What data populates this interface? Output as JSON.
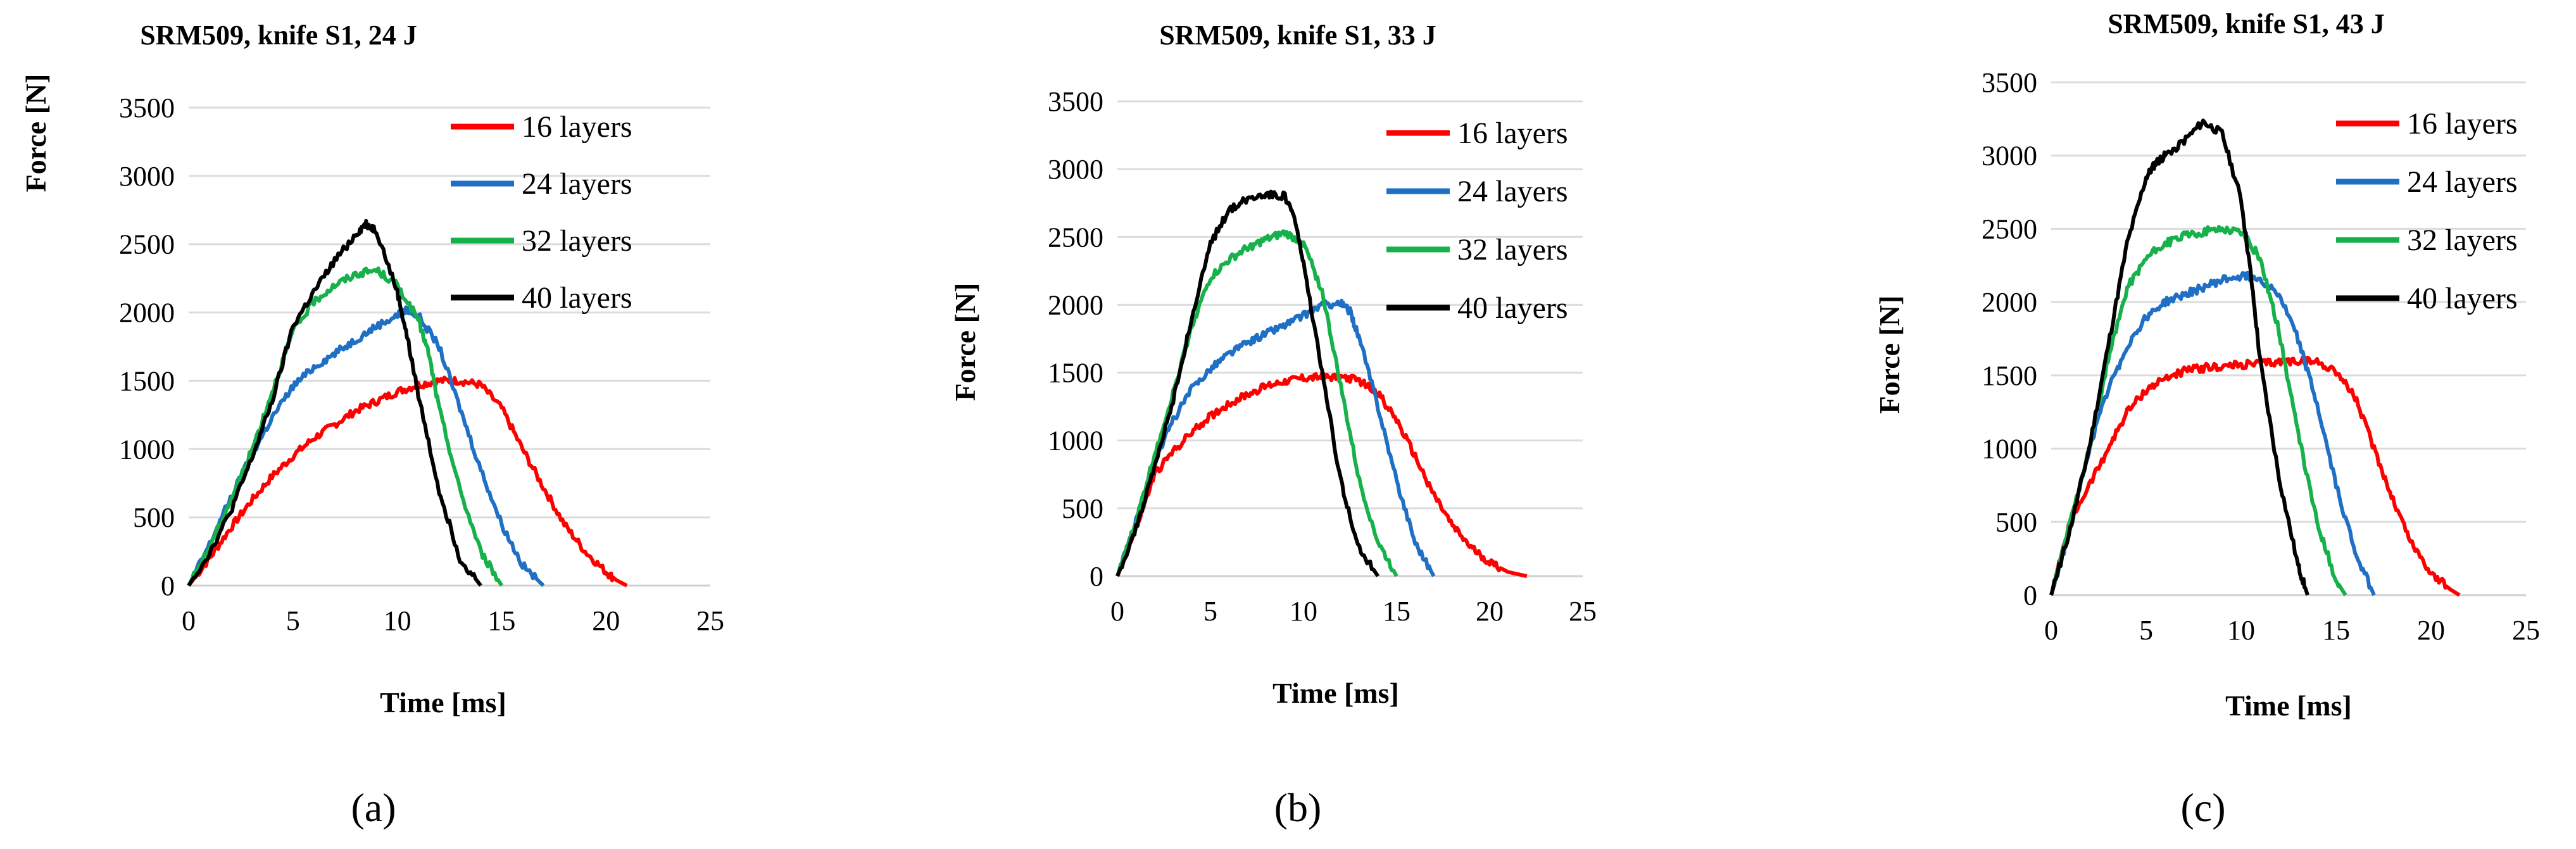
{
  "chart_data": [
    {
      "type": "line",
      "panel_label": "(a)",
      "title": "SRM509, knife S1, 24 J",
      "xlabel": "Time [ms]",
      "ylabel": "Force [N]",
      "xlim": [
        0,
        25
      ],
      "ylim": [
        0,
        3500
      ],
      "xticks": [
        0,
        5,
        10,
        15,
        20,
        25
      ],
      "yticks": [
        0,
        500,
        1000,
        1500,
        2000,
        2500,
        3000,
        3500
      ],
      "x_tick_labels": [
        "0",
        "5",
        "10",
        "15",
        "20",
        "25"
      ],
      "y_tick_labels": [
        "0",
        "500",
        "1000",
        "1500",
        "2000",
        "2500",
        "3000",
        "3500"
      ],
      "grid": "horizontal",
      "legend_position": "top-right",
      "series": [
        {
          "name": "16 layers",
          "color": "#ff0000",
          "x": [
            0,
            1,
            2,
            3,
            4,
            5,
            6,
            7,
            8,
            9,
            10,
            11,
            12,
            13,
            14,
            15,
            16,
            17,
            18,
            19,
            20,
            20.5,
            21
          ],
          "y": [
            0,
            200,
            420,
            620,
            800,
            950,
            1080,
            1180,
            1280,
            1350,
            1420,
            1470,
            1500,
            1500,
            1470,
            1300,
            1000,
            720,
            450,
            250,
            100,
            40,
            0
          ]
        },
        {
          "name": "24 layers",
          "color": "#1f6fc5",
          "x": [
            0,
            1,
            2,
            3,
            4,
            5,
            6,
            7,
            8,
            9,
            10,
            10.5,
            11,
            12,
            13,
            14,
            15,
            16,
            17
          ],
          "y": [
            0,
            300,
            640,
            950,
            1230,
            1460,
            1600,
            1700,
            1800,
            1900,
            1980,
            2020,
            1980,
            1750,
            1300,
            850,
            450,
            150,
            0
          ]
        },
        {
          "name": "32 layers",
          "color": "#17b14b",
          "x": [
            0,
            1,
            2,
            3,
            4,
            5,
            6,
            7,
            8,
            9,
            10,
            11,
            11.5,
            12,
            13,
            14,
            15
          ],
          "y": [
            0,
            280,
            620,
            980,
            1420,
            1860,
            2080,
            2200,
            2280,
            2310,
            2200,
            1950,
            1700,
            1300,
            700,
            250,
            0
          ]
        },
        {
          "name": "40 layers",
          "color": "#000000",
          "x": [
            0,
            1,
            2,
            3,
            4,
            5,
            6,
            7,
            8,
            8.5,
            9,
            10,
            10.5,
            11,
            12,
            13,
            14
          ],
          "y": [
            0,
            240,
            540,
            920,
            1350,
            1900,
            2150,
            2380,
            2570,
            2650,
            2600,
            2150,
            1800,
            1400,
            700,
            200,
            0
          ]
        }
      ]
    },
    {
      "type": "line",
      "panel_label": "(b)",
      "title": "SRM509, knife S1, 33 J",
      "xlabel": "Time [ms]",
      "ylabel": "Force [N]",
      "xlim": [
        0,
        25
      ],
      "ylim": [
        0,
        3500
      ],
      "xticks": [
        0,
        5,
        10,
        15,
        20,
        25
      ],
      "yticks": [
        0,
        500,
        1000,
        1500,
        2000,
        2500,
        3000,
        3500
      ],
      "x_tick_labels": [
        "0",
        "5",
        "10",
        "15",
        "20",
        "25"
      ],
      "y_tick_labels": [
        "0",
        "500",
        "1000",
        "1500",
        "2000",
        "2500",
        "3000",
        "3500"
      ],
      "grid": "horizontal",
      "legend_position": "top-right",
      "series": [
        {
          "name": "16 layers",
          "color": "#ff0000",
          "x": [
            0,
            1,
            2,
            3,
            4,
            5,
            6,
            7,
            8,
            9,
            10,
            11,
            12,
            13,
            14,
            15,
            16,
            17,
            18,
            19,
            20,
            21,
            22
          ],
          "y": [
            0,
            350,
            750,
            920,
            1060,
            1180,
            1270,
            1340,
            1400,
            1440,
            1460,
            1470,
            1470,
            1440,
            1350,
            1150,
            880,
            600,
            370,
            210,
            100,
            30,
            0
          ]
        },
        {
          "name": "24 layers",
          "color": "#1f6fc5",
          "x": [
            0,
            1,
            2,
            3,
            4,
            5,
            6,
            7,
            8,
            9,
            10,
            11,
            12,
            12.5,
            13,
            14,
            15,
            16,
            17
          ],
          "y": [
            0,
            400,
            850,
            1150,
            1380,
            1530,
            1640,
            1720,
            1790,
            1850,
            1920,
            2000,
            2010,
            1950,
            1750,
            1250,
            700,
            250,
            0
          ]
        },
        {
          "name": "32 layers",
          "color": "#17b14b",
          "x": [
            0,
            1,
            2,
            3,
            4,
            5,
            6,
            7,
            8,
            9,
            10,
            11,
            12,
            13,
            14,
            15
          ],
          "y": [
            0,
            400,
            900,
            1350,
            1850,
            2200,
            2330,
            2420,
            2480,
            2530,
            2450,
            2100,
            1400,
            700,
            250,
            0
          ]
        },
        {
          "name": "40 layers",
          "color": "#000000",
          "x": [
            0,
            1,
            2,
            3,
            4,
            5,
            6,
            7,
            8,
            9,
            9.5,
            10,
            11,
            12,
            13,
            14
          ],
          "y": [
            0,
            350,
            800,
            1300,
            1900,
            2450,
            2700,
            2780,
            2820,
            2800,
            2650,
            2300,
            1500,
            700,
            200,
            0
          ]
        }
      ]
    },
    {
      "type": "line",
      "panel_label": "(c)",
      "title": "SRM509, knife S1, 43 J",
      "xlabel": "Time [ms]",
      "ylabel": "Force [N]",
      "xlim": [
        0,
        25
      ],
      "ylim": [
        0,
        3500
      ],
      "xticks": [
        0,
        5,
        10,
        15,
        20,
        25
      ],
      "yticks": [
        0,
        500,
        1000,
        1500,
        2000,
        2500,
        3000,
        3500
      ],
      "x_tick_labels": [
        "0",
        "5",
        "10",
        "15",
        "20",
        "25"
      ],
      "y_tick_labels": [
        "0",
        "500",
        "1000",
        "1500",
        "2000",
        "2500",
        "3000",
        "3500"
      ],
      "grid": "horizontal",
      "legend_position": "top-right",
      "series": [
        {
          "name": "16 layers",
          "color": "#ff0000",
          "x": [
            0,
            1,
            2,
            3,
            4,
            5,
            6,
            7,
            8,
            9,
            10,
            11,
            12,
            13,
            14,
            15,
            16,
            17,
            18,
            19,
            20,
            21,
            21.5
          ],
          "y": [
            0,
            500,
            750,
            1000,
            1250,
            1400,
            1480,
            1530,
            1550,
            1560,
            1570,
            1580,
            1590,
            1600,
            1590,
            1530,
            1350,
            1000,
            650,
            350,
            150,
            40,
            0
          ]
        },
        {
          "name": "24 layers",
          "color": "#1f6fc5",
          "x": [
            0,
            1,
            2,
            3,
            4,
            5,
            6,
            7,
            8,
            9,
            10,
            11,
            12,
            13,
            14,
            15,
            16,
            17
          ],
          "y": [
            0,
            450,
            1000,
            1400,
            1700,
            1900,
            2000,
            2050,
            2100,
            2150,
            2180,
            2160,
            2050,
            1750,
            1300,
            750,
            300,
            0
          ]
        },
        {
          "name": "32 layers",
          "color": "#17b14b",
          "x": [
            0,
            1,
            2,
            3,
            4,
            5,
            6,
            7,
            8,
            9,
            10,
            11,
            12,
            13,
            14,
            15,
            15.5
          ],
          "y": [
            0,
            500,
            1000,
            1600,
            2100,
            2300,
            2400,
            2450,
            2480,
            2500,
            2480,
            2300,
            1800,
            1100,
            500,
            100,
            0
          ]
        },
        {
          "name": "40 layers",
          "color": "#000000",
          "x": [
            0,
            1,
            2,
            3,
            4,
            5,
            5.5,
            6,
            7,
            8,
            9,
            10,
            10.5,
            11,
            12,
            13,
            13.5
          ],
          "y": [
            0,
            450,
            1000,
            1700,
            2400,
            2850,
            2950,
            3000,
            3100,
            3230,
            3150,
            2700,
            2200,
            1600,
            800,
            200,
            0
          ]
        }
      ]
    }
  ]
}
